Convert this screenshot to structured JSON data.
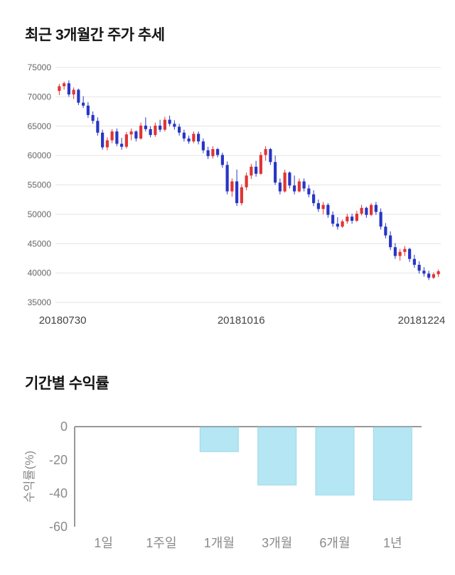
{
  "price_section": {
    "title": "최근 3개월간 주가 추세"
  },
  "returns_section": {
    "title": "기간별 수익률"
  },
  "chart_data": [
    {
      "type": "candlestick",
      "title": "최근 3개월간 주가 추세",
      "ylim": [
        35000,
        75000
      ],
      "yticks": [
        75000,
        70000,
        65000,
        60000,
        55000,
        50000,
        45000,
        40000,
        35000
      ],
      "xtick_labels": [
        "20180730",
        "20181016",
        "20181224"
      ],
      "up_color": "#e03434",
      "down_color": "#2736c4",
      "grid_color": "#e4e4e4",
      "axis_text_color": "#666666",
      "date_text_color": "#444444",
      "candles": [
        [
          71000,
          72200,
          70300,
          71800
        ],
        [
          71800,
          72600,
          71200,
          72300
        ],
        [
          72300,
          72800,
          70000,
          70400
        ],
        [
          70400,
          71600,
          69600,
          71200
        ],
        [
          71200,
          71400,
          68600,
          69000
        ],
        [
          69000,
          70100,
          68100,
          68500
        ],
        [
          68500,
          69100,
          66400,
          66900
        ],
        [
          66900,
          67500,
          65400,
          65900
        ],
        [
          65900,
          66500,
          63400,
          63900
        ],
        [
          63900,
          64400,
          61000,
          61400
        ],
        [
          61400,
          63100,
          60900,
          62600
        ],
        [
          62600,
          64500,
          62100,
          64100
        ],
        [
          64100,
          64600,
          61600,
          62000
        ],
        [
          62000,
          63000,
          61000,
          61500
        ],
        [
          61500,
          64000,
          61200,
          63600
        ],
        [
          63600,
          64600,
          62600,
          64100
        ],
        [
          64100,
          64300,
          62400,
          62900
        ],
        [
          62900,
          65600,
          62700,
          65100
        ],
        [
          65100,
          66500,
          64100,
          64500
        ],
        [
          64500,
          65000,
          63100,
          63500
        ],
        [
          63500,
          65600,
          63200,
          65100
        ],
        [
          65100,
          66100,
          64000,
          64400
        ],
        [
          64400,
          66600,
          64100,
          66100
        ],
        [
          66100,
          66800,
          65000,
          65400
        ],
        [
          65400,
          66000,
          64400,
          64900
        ],
        [
          64900,
          65400,
          63400,
          63900
        ],
        [
          63900,
          64400,
          62400,
          62900
        ],
        [
          62900,
          63400,
          62000,
          62400
        ],
        [
          62400,
          64100,
          62100,
          63700
        ],
        [
          63700,
          64100,
          61900,
          62400
        ],
        [
          62400,
          62900,
          60400,
          60900
        ],
        [
          60900,
          61500,
          59400,
          59900
        ],
        [
          59900,
          61600,
          59500,
          61100
        ],
        [
          61100,
          61300,
          59700,
          60100
        ],
        [
          60100,
          60500,
          57900,
          58400
        ],
        [
          58400,
          59000,
          53400,
          53900
        ],
        [
          53900,
          56100,
          53000,
          55600
        ],
        [
          55600,
          57600,
          51400,
          51900
        ],
        [
          51900,
          55100,
          51500,
          54600
        ],
        [
          54600,
          57100,
          54100,
          56600
        ],
        [
          56600,
          58600,
          56000,
          58100
        ],
        [
          58100,
          59100,
          56400,
          56900
        ],
        [
          56900,
          60600,
          56700,
          60100
        ],
        [
          60100,
          61600,
          59100,
          61100
        ],
        [
          61100,
          61300,
          58400,
          58900
        ],
        [
          58900,
          60000,
          55000,
          55400
        ],
        [
          55400,
          56100,
          53400,
          53900
        ],
        [
          53900,
          57600,
          53700,
          57100
        ],
        [
          57100,
          57300,
          54400,
          54900
        ],
        [
          54900,
          56600,
          53400,
          53900
        ],
        [
          53900,
          56100,
          53700,
          55600
        ],
        [
          55600,
          56100,
          53900,
          54400
        ],
        [
          54400,
          55000,
          52900,
          53400
        ],
        [
          53400,
          54100,
          51400,
          51900
        ],
        [
          51900,
          52500,
          50400,
          50900
        ],
        [
          50900,
          52100,
          50000,
          51600
        ],
        [
          51600,
          51900,
          49400,
          49900
        ],
        [
          49900,
          50500,
          47900,
          48400
        ],
        [
          48400,
          49500,
          47400,
          47900
        ],
        [
          47900,
          49100,
          47700,
          48800
        ],
        [
          48800,
          50100,
          48400,
          49600
        ],
        [
          49600,
          50100,
          48400,
          48900
        ],
        [
          48900,
          50600,
          48700,
          50100
        ],
        [
          50100,
          51600,
          49800,
          51100
        ],
        [
          51100,
          51300,
          49400,
          49900
        ],
        [
          49900,
          51900,
          49700,
          51600
        ],
        [
          51600,
          52100,
          49900,
          50400
        ],
        [
          50400,
          51000,
          47400,
          47900
        ],
        [
          47900,
          48500,
          45900,
          46400
        ],
        [
          46400,
          47100,
          43900,
          44400
        ],
        [
          44400,
          45100,
          42400,
          42900
        ],
        [
          42900,
          44100,
          42100,
          43600
        ],
        [
          43600,
          44600,
          42900,
          44100
        ],
        [
          44100,
          44300,
          41900,
          42400
        ],
        [
          42400,
          43100,
          40900,
          41400
        ],
        [
          41400,
          42000,
          39900,
          40400
        ],
        [
          40400,
          41000,
          39400,
          39900
        ],
        [
          39900,
          40400,
          38800,
          39200
        ],
        [
          39200,
          40100,
          39000,
          39800
        ],
        [
          39800,
          40600,
          39300,
          40300
        ]
      ]
    },
    {
      "type": "bar",
      "title": "기간별 수익률",
      "ylabel": "수익률(%)",
      "categories": [
        "1일",
        "1주일",
        "1개월",
        "3개월",
        "6개월",
        "1년"
      ],
      "values": [
        0,
        0,
        -15,
        -35,
        -41,
        -44
      ],
      "ylim": [
        -60,
        0
      ],
      "yticks": [
        0,
        -20,
        -40,
        -60
      ],
      "bar_color": "#b5e6f3",
      "bar_edge": "#9bd9ea",
      "axis_color": "#999999",
      "text_color": "#8a8a8a"
    }
  ]
}
